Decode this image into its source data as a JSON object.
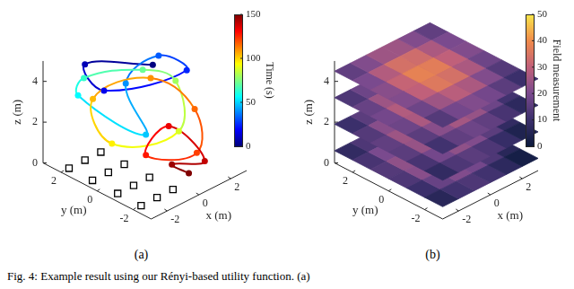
{
  "caption": "Fig. 4: Example result using our Rényi-based utility function. (a)",
  "chart_data": [
    {
      "type": "trajectory",
      "label": "(a)",
      "xlabel": "x (m)",
      "ylabel": "y (m)",
      "zlabel": "z (m)",
      "xlim": [
        -3,
        3
      ],
      "ylim": [
        -3,
        3
      ],
      "zlim": [
        0,
        5
      ],
      "xticks": [
        -2,
        0,
        2
      ],
      "yticks": [
        -2,
        0,
        2
      ],
      "zticks": [
        0,
        2,
        4
      ],
      "colorbar": {
        "label": "Time (s)",
        "range": [
          0,
          150
        ],
        "ticks": [
          0,
          50,
          100,
          150
        ]
      },
      "squares": {
        "marker": "square",
        "color": "#000000",
        "x": [
          -2.5,
          -2.5,
          -2.5,
          -2.5,
          -1.5,
          -1.5,
          -1.5,
          -1.5,
          -0.5,
          -0.5,
          -0.5,
          -0.5
        ],
        "y": [
          2,
          0.7,
          -0.7,
          -2,
          2,
          0.7,
          -0.7,
          -2,
          2,
          0.7,
          -0.7,
          -2
        ],
        "z": [
          0,
          0,
          0,
          0,
          0,
          0,
          0,
          0,
          0,
          0,
          0,
          0
        ]
      },
      "path": {
        "marker": "circle",
        "x": [
          0.5,
          -1.5,
          -2,
          1.5,
          2,
          0.5,
          -0.5,
          -2.5,
          -1,
          1,
          2.5,
          1,
          -1.5,
          -1,
          1.5,
          2,
          1,
          -0.5,
          1.5,
          1.5,
          0,
          0.5
        ],
        "y": [
          0,
          2,
          0.5,
          -1,
          1,
          1.5,
          -0.5,
          1.5,
          2.5,
          1,
          0.5,
          -1,
          0.5,
          2,
          1,
          -1,
          -2,
          -0.5,
          0,
          -2,
          -1.5,
          -2
        ],
        "z": [
          4.8,
          4.7,
          4.3,
          4.6,
          4.2,
          3.2,
          2.0,
          3.8,
          3.6,
          3.9,
          3.0,
          1.8,
          1.5,
          2.8,
          3.3,
          2.5,
          1.2,
          1.0,
          1.4,
          0.6,
          0.8,
          0.4
        ],
        "t": [
          0,
          8,
          16,
          24,
          32,
          40,
          48,
          56,
          64,
          72,
          80,
          88,
          96,
          104,
          110,
          116,
          122,
          128,
          134,
          140,
          146,
          150
        ]
      }
    },
    {
      "type": "layers",
      "label": "(b)",
      "xlabel": "x (m)",
      "ylabel": "y (m)",
      "zlabel": "z (m)",
      "xlim": [
        -3,
        3
      ],
      "ylim": [
        -3,
        3
      ],
      "zlim": [
        0,
        5
      ],
      "xticks": [
        -2,
        0,
        2
      ],
      "yticks": [
        -2,
        0,
        2
      ],
      "zticks": [
        0,
        2,
        4
      ],
      "colorbar": {
        "label": "Field measurement",
        "range": [
          0,
          50
        ],
        "ticks": [
          0,
          10,
          20,
          30,
          40,
          50
        ]
      },
      "grid_x": [
        -2.5,
        -1.5,
        -0.5,
        0.5,
        1.5,
        2.5
      ],
      "grid_y": [
        2.5,
        1.5,
        0.5,
        -0.5,
        -1.5,
        -2.5
      ],
      "layers": [
        {
          "z": 0.6,
          "values": [
            [
              8,
              13,
              17,
              17,
              13,
              8
            ],
            [
              12,
              20,
              26,
              25,
              19,
              12
            ],
            [
              14,
              23,
              30,
              29,
              22,
              13
            ],
            [
              13,
              22,
              28,
              26,
              19,
              10
            ],
            [
              10,
              17,
              21,
              19,
              13,
              6
            ],
            [
              6,
              11,
              13,
              11,
              7,
              2
            ]
          ]
        },
        {
          "z": 1.9,
          "values": [
            [
              10,
              15,
              19,
              19,
              15,
              10
            ],
            [
              14,
              22,
              28,
              27,
              21,
              14
            ],
            [
              16,
              25,
              32,
              31,
              24,
              15
            ],
            [
              15,
              24,
              30,
              28,
              21,
              12
            ],
            [
              12,
              19,
              23,
              21,
              15,
              8
            ],
            [
              8,
              13,
              15,
              13,
              9,
              4
            ]
          ]
        },
        {
          "z": 3.2,
          "values": [
            [
              13,
              18,
              22,
              22,
              18,
              13
            ],
            [
              17,
              25,
              31,
              30,
              24,
              17
            ],
            [
              19,
              28,
              35,
              34,
              27,
              18
            ],
            [
              18,
              27,
              33,
              31,
              24,
              15
            ],
            [
              15,
              22,
              26,
              24,
              18,
              11
            ],
            [
              11,
              16,
              18,
              16,
              12,
              7
            ]
          ]
        },
        {
          "z": 4.5,
          "values": [
            [
              16,
              21,
              25,
              25,
              21,
              16
            ],
            [
              20,
              28,
              34,
              33,
              27,
              20
            ],
            [
              22,
              31,
              38,
              37,
              30,
              21
            ],
            [
              21,
              30,
              36,
              34,
              27,
              18
            ],
            [
              18,
              25,
              29,
              27,
              21,
              14
            ],
            [
              14,
              19,
              21,
              19,
              15,
              10
            ]
          ]
        }
      ]
    }
  ]
}
